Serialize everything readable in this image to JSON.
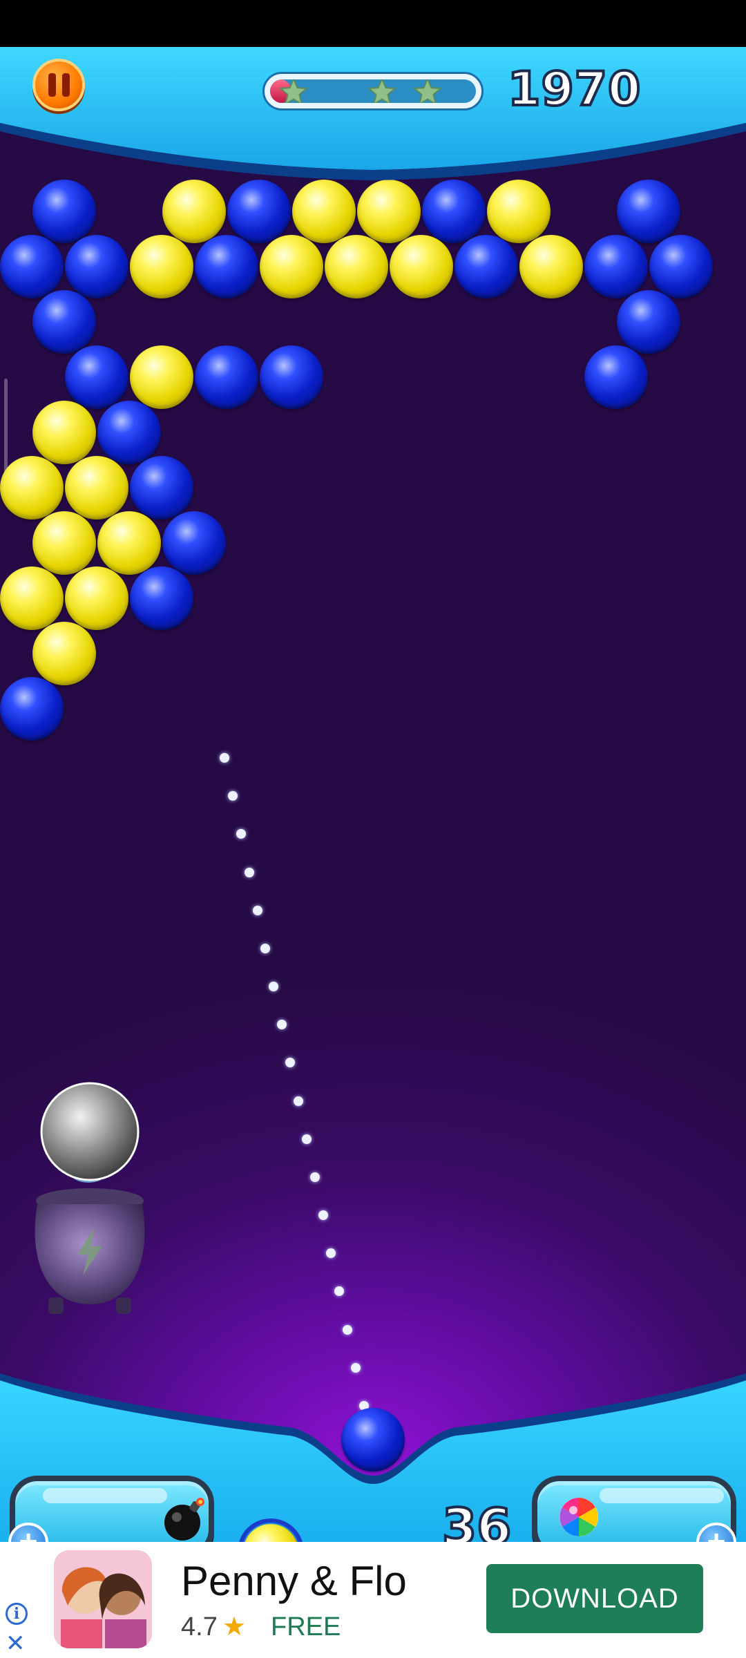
{
  "hud": {
    "score": "1970",
    "star_progress": 0.1,
    "stars_earned": 0,
    "stars_total": 3
  },
  "board": {
    "colors": {
      "blue": "#0a1fc8",
      "yellow": "#e5d400"
    },
    "rows": [
      [
        "",
        "",
        "",
        "",
        "",
        "",
        "",
        "",
        "",
        "",
        "",
        ""
      ],
      [
        "blue",
        "",
        "yellow",
        "blue",
        "yellow",
        "yellow",
        "blue",
        "yellow",
        "",
        "blue",
        "",
        ""
      ],
      [
        "blue",
        "blue",
        "yellow",
        "blue",
        "yellow",
        "yellow",
        "yellow",
        "blue",
        "yellow",
        "blue",
        "blue",
        ""
      ],
      [
        "blue",
        "",
        "",
        "",
        "",
        "",
        "",
        "",
        "",
        "blue",
        "",
        ""
      ],
      [
        "",
        "blue",
        "yellow",
        "blue",
        "blue",
        "",
        "",
        "",
        "",
        "blue",
        "",
        ""
      ],
      [
        "yellow",
        "blue",
        "",
        "",
        "",
        "",
        "",
        "",
        "",
        "",
        "",
        ""
      ],
      [
        "yellow",
        "yellow",
        "blue",
        "",
        "",
        "",
        "",
        "",
        "",
        "",
        "",
        ""
      ],
      [
        "yellow",
        "yellow",
        "blue",
        "",
        "",
        "",
        "",
        "",
        "",
        "",
        "",
        ""
      ],
      [
        "yellow",
        "yellow",
        "blue",
        "",
        "",
        "",
        "",
        "",
        "",
        "",
        "",
        ""
      ],
      [
        "yellow",
        "",
        "",
        "",
        "",
        "",
        "",
        "",
        "",
        "",
        "",
        ""
      ],
      [
        "blue",
        "",
        "",
        "",
        "",
        "",
        "",
        "",
        "",
        "",
        "",
        ""
      ]
    ]
  },
  "shooter": {
    "current_bubble": "blue",
    "next_bubble": "yellow",
    "shots_left": "36"
  },
  "boosters": {
    "left_icon": "bomb-icon",
    "right_icon": "rainbow-ball-icon",
    "cauldron_icon": "lightning-icon"
  },
  "ad": {
    "title": "Penny & Flo",
    "rating": "4.7",
    "star": "★",
    "price": "FREE",
    "cta": "DOWNLOAD",
    "info": "i",
    "close": "✕"
  }
}
